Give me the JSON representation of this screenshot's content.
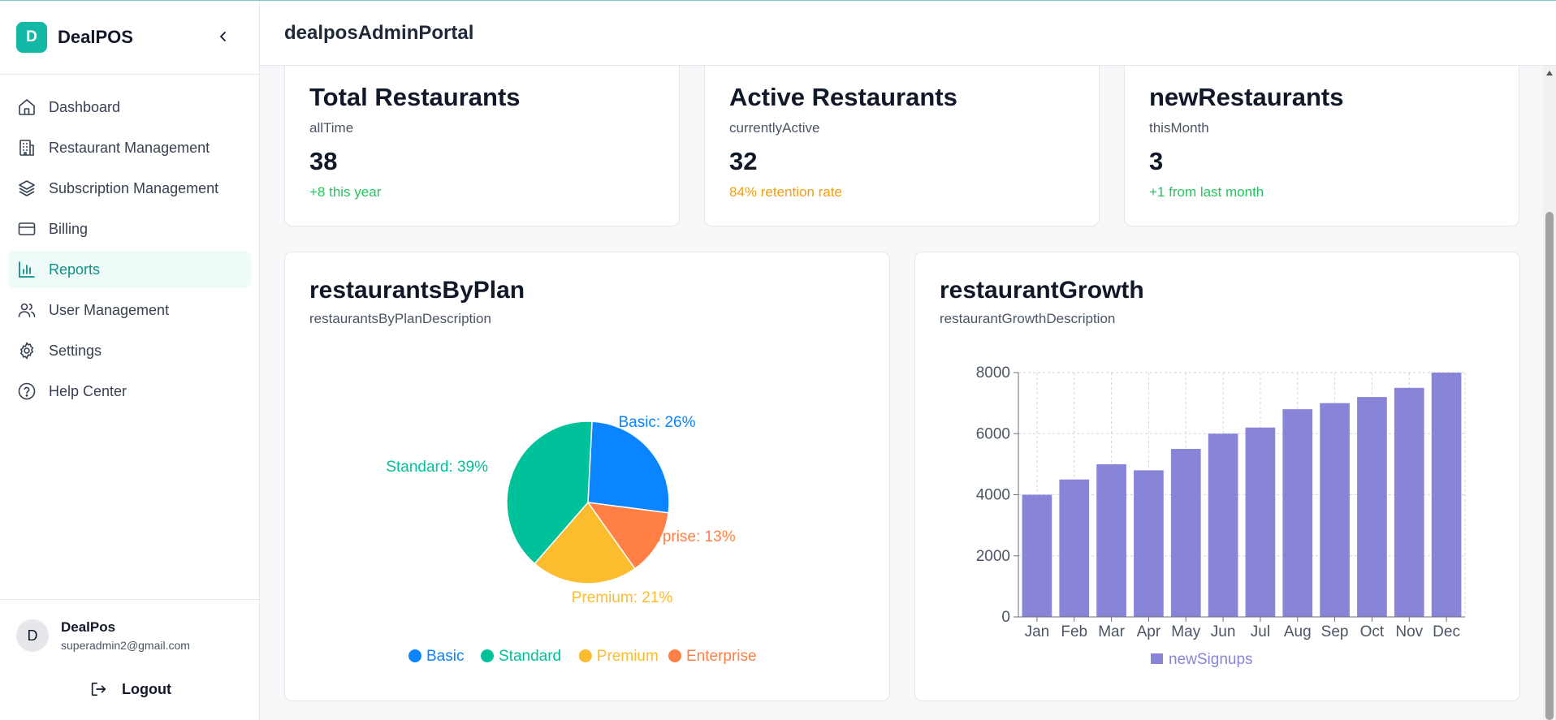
{
  "brand": {
    "logo_letter": "D",
    "name": "DealPOS"
  },
  "nav": [
    {
      "label": "Dashboard",
      "icon": "home-icon",
      "active": false
    },
    {
      "label": "Restaurant Management",
      "icon": "building-icon",
      "active": false
    },
    {
      "label": "Subscription Management",
      "icon": "layers-icon",
      "active": false
    },
    {
      "label": "Billing",
      "icon": "credit-card-icon",
      "active": false
    },
    {
      "label": "Reports",
      "icon": "bar-chart-icon",
      "active": true
    },
    {
      "label": "User Management",
      "icon": "users-icon",
      "active": false
    },
    {
      "label": "Settings",
      "icon": "gear-icon",
      "active": false
    },
    {
      "label": "Help Center",
      "icon": "help-circle-icon",
      "active": false
    }
  ],
  "user": {
    "avatar_letter": "D",
    "name": "DealPos",
    "email": "superadmin2@gmail.com",
    "logout_label": "Logout"
  },
  "header": {
    "title": "dealposAdminPortal"
  },
  "stats": [
    {
      "title": "Total Restaurants",
      "sub": "allTime",
      "value": "38",
      "note": "+8 this year",
      "note_color": "#22c55e"
    },
    {
      "title": "Active Restaurants",
      "sub": "currentlyActive",
      "value": "32",
      "note": "84% retention rate",
      "note_color": "#f59e0b"
    },
    {
      "title": "newRestaurants",
      "sub": "thisMonth",
      "value": "3",
      "note": "+1 from last month",
      "note_color": "#22c55e"
    }
  ],
  "pie_card": {
    "title": "restaurantsByPlan",
    "sub": "restaurantsByPlanDescription"
  },
  "bar_card": {
    "title": "restaurantGrowth",
    "sub": "restaurantGrowthDescription"
  },
  "colors": {
    "accent": "#14b8a6",
    "active_bg": "#eefbf8",
    "active_text": "#0f8f85"
  },
  "chart_data": [
    {
      "type": "pie",
      "title": "restaurantsByPlan",
      "slices": [
        {
          "name": "Basic",
          "value": 26,
          "label": "Basic: 26%",
          "color": "#0a84ff"
        },
        {
          "name": "Enterprise",
          "value": 13,
          "label": "Enterprise: 13%",
          "color": "#ff7f45"
        },
        {
          "name": "Premium",
          "value": 21,
          "label": "Premium: 21%",
          "color": "#fbbc2d"
        },
        {
          "name": "Standard",
          "value": 39,
          "label": "Standard: 39%",
          "color": "#00c29a"
        }
      ],
      "legend": [
        {
          "name": "Basic",
          "color": "#0a84ff"
        },
        {
          "name": "Standard",
          "color": "#00c29a"
        },
        {
          "name": "Premium",
          "color": "#fbbc2d"
        },
        {
          "name": "Enterprise",
          "color": "#ff7f45"
        }
      ],
      "legend_placement": "bottom"
    },
    {
      "type": "bar",
      "title": "restaurantGrowth",
      "categories": [
        "Jan",
        "Feb",
        "Mar",
        "Apr",
        "May",
        "Jun",
        "Jul",
        "Aug",
        "Sep",
        "Oct",
        "Nov",
        "Dec"
      ],
      "series": [
        {
          "name": "newSignups",
          "color": "#8884d8",
          "values": [
            4000,
            4500,
            5000,
            4800,
            5500,
            6000,
            6200,
            6800,
            7000,
            7200,
            7500,
            8000
          ]
        }
      ],
      "ylim": [
        0,
        8000
      ],
      "yticks": [
        "0",
        "2000",
        "4000",
        "6000",
        "8000"
      ],
      "grid": true,
      "legend_placement": "bottom"
    }
  ]
}
